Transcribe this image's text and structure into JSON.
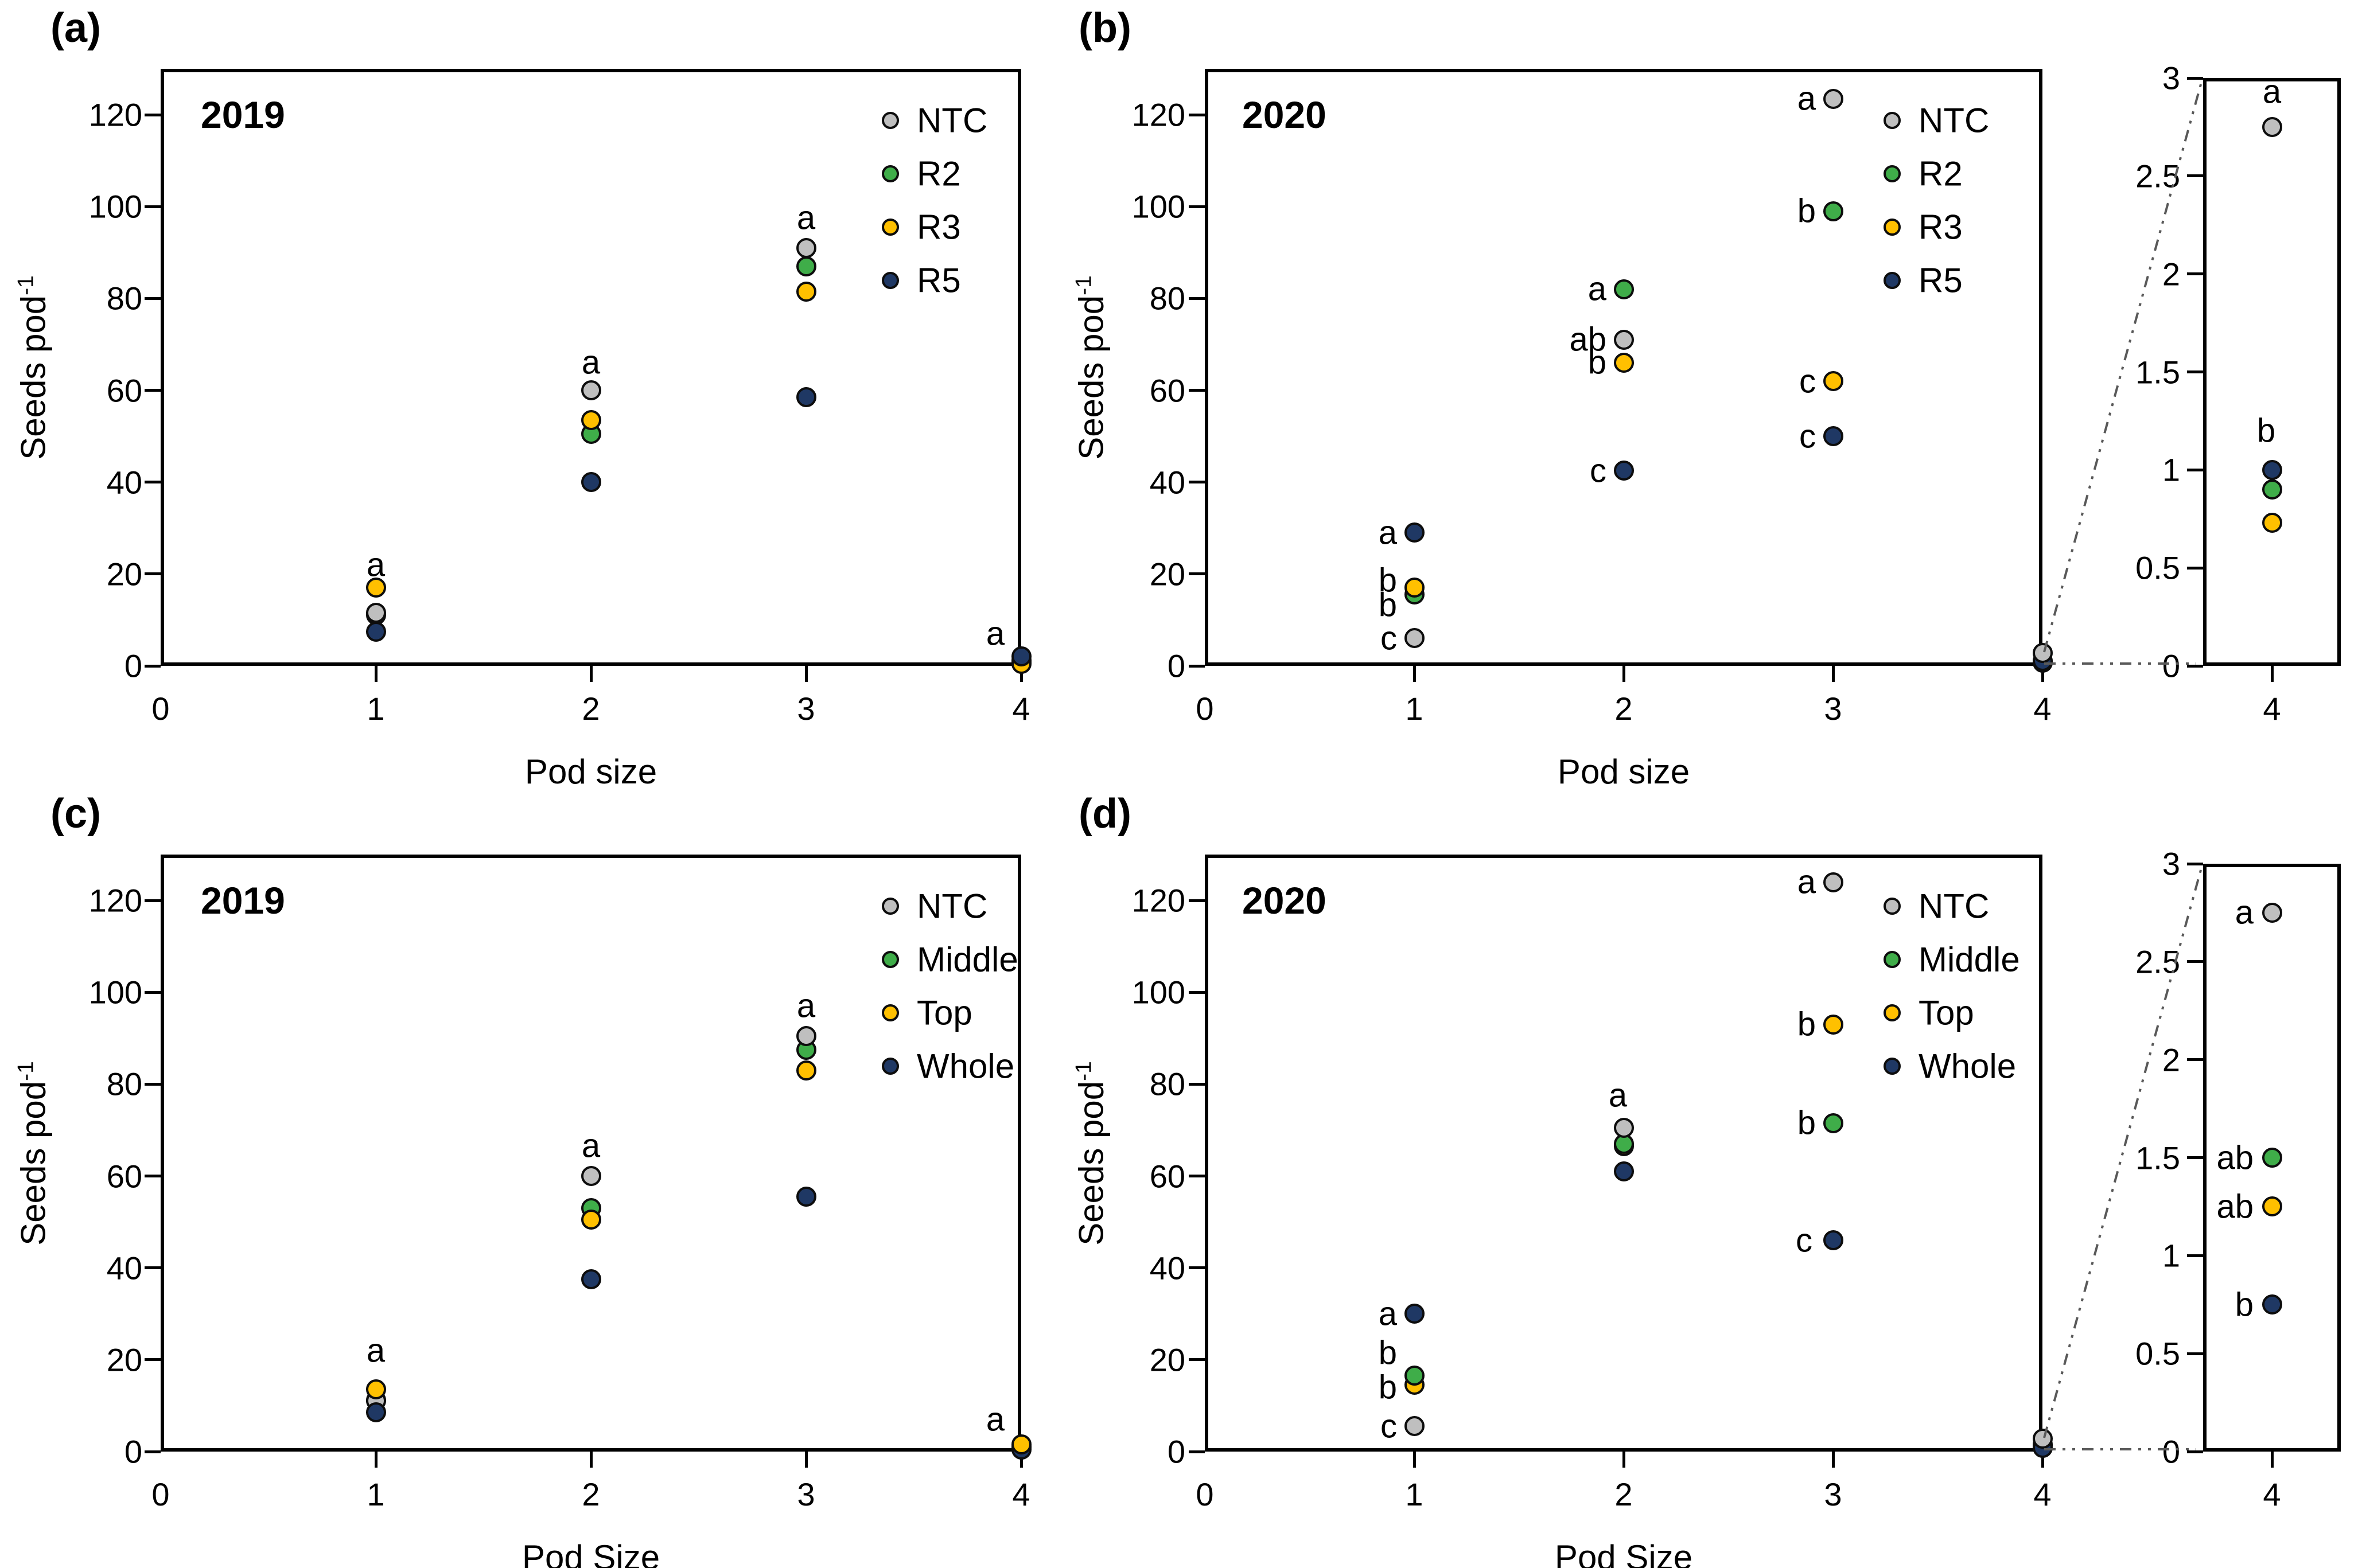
{
  "page": {
    "background": "#ffffff",
    "marker_outline": "#0d0d0d",
    "callout_line_color": "#595959"
  },
  "chart_data": [
    {
      "id": "a",
      "type": "scatter",
      "row": 0,
      "col": 0,
      "panel_letter": "(a)",
      "year": "2019",
      "xlabel": "Pod size",
      "ylabel": {
        "base": "Seeds pod",
        "sup": "-1"
      },
      "xlim": [
        0,
        4
      ],
      "ylim": [
        0,
        130
      ],
      "xticks": [
        "0",
        "1",
        "2",
        "3",
        "4"
      ],
      "yticks": [
        "0",
        "20",
        "40",
        "60",
        "80",
        "100",
        "120"
      ],
      "x": [
        1,
        2,
        3,
        4
      ],
      "legend": {
        "position": "top-right-inside",
        "entries": [
          "NTC",
          "R2",
          "R3",
          "R5"
        ]
      },
      "colors": {
        "NTC": "#bfbfbf",
        "R2": "#3fad49",
        "R3": "#ffc000",
        "R5": "#1f3864"
      },
      "series": [
        {
          "name": "R2",
          "values": [
            11.0,
            50.5,
            87.0,
            0.8
          ]
        },
        {
          "name": "NTC",
          "values": [
            11.5,
            60.0,
            91.0,
            1.2
          ]
        },
        {
          "name": "R3",
          "values": [
            17.0,
            53.5,
            81.5,
            0.4
          ]
        },
        {
          "name": "R5",
          "values": [
            7.4,
            40.0,
            58.5,
            2.0
          ]
        }
      ],
      "sig_labels": [
        {
          "x": 1,
          "y": 22,
          "text": "a",
          "pos": "above",
          "dx": 0
        },
        {
          "x": 2,
          "y": 66,
          "text": "a",
          "pos": "above",
          "dx": 0
        },
        {
          "x": 3,
          "y": 97.5,
          "text": "a",
          "pos": "above",
          "dx": 0
        },
        {
          "x": 4,
          "y": 7,
          "text": "a",
          "pos": "above",
          "dx": -45
        }
      ],
      "inset": null
    },
    {
      "id": "b",
      "type": "scatter",
      "row": 0,
      "col": 1,
      "panel_letter": "(b)",
      "year": "2020",
      "xlabel": "Pod size",
      "ylabel": {
        "base": "Seeds pod",
        "sup": "-1"
      },
      "xlim": [
        0,
        4
      ],
      "ylim": [
        0,
        130
      ],
      "xticks": [
        "0",
        "1",
        "2",
        "3",
        "4"
      ],
      "yticks": [
        "0",
        "20",
        "40",
        "60",
        "80",
        "100",
        "120"
      ],
      "x": [
        1,
        2,
        3,
        4
      ],
      "legend": {
        "position": "top-right-inside",
        "entries": [
          "NTC",
          "R2",
          "R3",
          "R5"
        ]
      },
      "colors": {
        "NTC": "#bfbfbf",
        "R2": "#3fad49",
        "R3": "#ffc000",
        "R5": "#1f3864"
      },
      "series": [
        {
          "name": "R2",
          "values": [
            15.5,
            82.0,
            99.0,
            0.9
          ]
        },
        {
          "name": "R3",
          "values": [
            17.0,
            66.0,
            62.0,
            0.73
          ]
        },
        {
          "name": "R5",
          "values": [
            29.0,
            42.5,
            50.0,
            1.0
          ]
        },
        {
          "name": "NTC",
          "values": [
            6.0,
            71.0,
            123.5,
            2.75
          ]
        }
      ],
      "sig_labels": [
        {
          "x": 1,
          "y": 29,
          "text": "a",
          "pos": "left",
          "dx": 0
        },
        {
          "x": 1,
          "y": 18.6,
          "text": "b",
          "pos": "left",
          "dx": 0
        },
        {
          "x": 1,
          "y": 13.2,
          "text": "b",
          "pos": "left",
          "dx": 0
        },
        {
          "x": 1,
          "y": 6,
          "text": "c",
          "pos": "left",
          "dx": 0
        },
        {
          "x": 2,
          "y": 82,
          "text": "a",
          "pos": "left",
          "dx": 0
        },
        {
          "x": 2,
          "y": 71,
          "text": "ab",
          "pos": "left",
          "dx": 0
        },
        {
          "x": 2,
          "y": 66,
          "text": "b",
          "pos": "left",
          "dx": 0
        },
        {
          "x": 2,
          "y": 42.5,
          "text": "c",
          "pos": "left",
          "dx": 0
        },
        {
          "x": 3,
          "y": 123.5,
          "text": "a",
          "pos": "left",
          "dx": 0
        },
        {
          "x": 3,
          "y": 99,
          "text": "b",
          "pos": "left",
          "dx": 0
        },
        {
          "x": 3,
          "y": 62,
          "text": "c",
          "pos": "left",
          "dx": 0
        },
        {
          "x": 3,
          "y": 50,
          "text": "c",
          "pos": "left",
          "dx": 0
        }
      ],
      "inset": {
        "x_of_detail": 4,
        "xtick": "4",
        "ylim": [
          0,
          3
        ],
        "yticks": [
          "0",
          "0.5",
          "1",
          "1.5",
          "2",
          "2.5",
          "3"
        ],
        "sig_labels": [
          {
            "y": 2.93,
            "text": "a",
            "pos": "above",
            "dx": 0
          },
          {
            "y": 1.2,
            "text": "b",
            "pos": "above",
            "dx": -10
          }
        ]
      }
    },
    {
      "id": "c",
      "type": "scatter",
      "row": 1,
      "col": 0,
      "panel_letter": "(c)",
      "year": "2019",
      "xlabel": "Pod Size",
      "ylabel": {
        "base": "Seeds pod",
        "sup": "-1"
      },
      "xlim": [
        0,
        4
      ],
      "ylim": [
        0,
        130
      ],
      "xticks": [
        "0",
        "1",
        "2",
        "3",
        "4"
      ],
      "yticks": [
        "0",
        "20",
        "40",
        "60",
        "80",
        "100",
        "120"
      ],
      "x": [
        1,
        2,
        3,
        4
      ],
      "legend": {
        "position": "top-right-inside",
        "entries": [
          "NTC",
          "Middle",
          "Top",
          "Whole"
        ]
      },
      "colors": {
        "NTC": "#bfbfbf",
        "Middle": "#3fad49",
        "Top": "#ffc000",
        "Whole": "#1f3864"
      },
      "series": [
        {
          "name": "Middle",
          "values": [
            11.2,
            53.0,
            87.5,
            0.9
          ]
        },
        {
          "name": "NTC",
          "values": [
            11.0,
            60.0,
            90.5,
            1.1
          ]
        },
        {
          "name": "Whole",
          "values": [
            8.5,
            37.5,
            55.5,
            0.4
          ]
        },
        {
          "name": "Top",
          "values": [
            13.5,
            50.5,
            83.0,
            1.6
          ]
        }
      ],
      "sig_labels": [
        {
          "x": 1,
          "y": 22,
          "text": "a",
          "pos": "above",
          "dx": 0
        },
        {
          "x": 2,
          "y": 66.5,
          "text": "a",
          "pos": "above",
          "dx": 0
        },
        {
          "x": 3,
          "y": 97,
          "text": "a",
          "pos": "above",
          "dx": 0
        },
        {
          "x": 4,
          "y": 7,
          "text": "a",
          "pos": "above",
          "dx": -45
        }
      ],
      "inset": null
    },
    {
      "id": "d",
      "type": "scatter",
      "row": 1,
      "col": 1,
      "panel_letter": "(d)",
      "year": "2020",
      "xlabel": "Pod Size",
      "ylabel": {
        "base": "Seeds pod",
        "sup": "-1"
      },
      "xlim": [
        0,
        4
      ],
      "ylim": [
        0,
        130
      ],
      "xticks": [
        "0",
        "1",
        "2",
        "3",
        "4"
      ],
      "yticks": [
        "0",
        "20",
        "40",
        "60",
        "80",
        "100",
        "120"
      ],
      "x": [
        1,
        2,
        3,
        4
      ],
      "legend": {
        "position": "top-right-inside",
        "entries": [
          "NTC",
          "Middle",
          "Top",
          "Whole"
        ]
      },
      "colors": {
        "NTC": "#bfbfbf",
        "Middle": "#3fad49",
        "Top": "#ffc000",
        "Whole": "#1f3864"
      },
      "series": [
        {
          "name": "Top",
          "values": [
            14.5,
            66.5,
            93.0,
            1.25
          ]
        },
        {
          "name": "Middle",
          "values": [
            16.5,
            67.0,
            71.5,
            1.5
          ]
        },
        {
          "name": "Whole",
          "values": [
            30.0,
            61.0,
            46.0,
            0.75
          ]
        },
        {
          "name": "NTC",
          "values": [
            5.5,
            70.5,
            124.0,
            2.75
          ]
        }
      ],
      "sig_labels": [
        {
          "x": 1,
          "y": 30,
          "text": "a",
          "pos": "left",
          "dx": 0
        },
        {
          "x": 1,
          "y": 21.5,
          "text": "b",
          "pos": "left",
          "dx": 0
        },
        {
          "x": 1,
          "y": 14,
          "text": "b",
          "pos": "left",
          "dx": 0
        },
        {
          "x": 1,
          "y": 5.5,
          "text": "c",
          "pos": "left",
          "dx": 0
        },
        {
          "x": 2,
          "y": 77.5,
          "text": "a",
          "pos": "above",
          "dx": -10
        },
        {
          "x": 3,
          "y": 124,
          "text": "a",
          "pos": "left",
          "dx": 0
        },
        {
          "x": 3,
          "y": 93,
          "text": "b",
          "pos": "left",
          "dx": 0
        },
        {
          "x": 3,
          "y": 71.5,
          "text": "b",
          "pos": "left",
          "dx": 0
        },
        {
          "x": 3,
          "y": 46,
          "text": "c",
          "pos": "left",
          "dx": -6
        }
      ],
      "inset": {
        "x_of_detail": 4,
        "xtick": "4",
        "ylim": [
          0,
          3
        ],
        "yticks": [
          "0",
          "0.5",
          "1",
          "1.5",
          "2",
          "2.5",
          "3"
        ],
        "sig_labels": [
          {
            "y": 2.75,
            "text": "a",
            "pos": "left",
            "dx": 0
          },
          {
            "y": 1.5,
            "text": "ab",
            "pos": "left",
            "dx": 0
          },
          {
            "y": 1.25,
            "text": "ab",
            "pos": "left",
            "dx": 0
          },
          {
            "y": 0.75,
            "text": "b",
            "pos": "left",
            "dx": 0
          }
        ]
      }
    }
  ]
}
